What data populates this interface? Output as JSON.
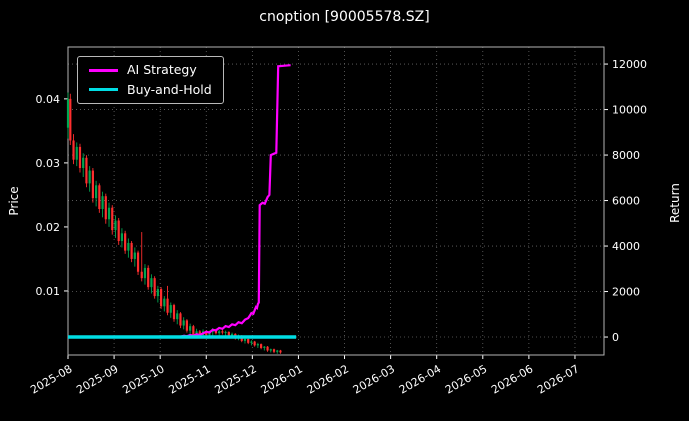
{
  "chart_data": {
    "type": "candlestick+line",
    "title": "cnoption [90005578.SZ]",
    "ylabel_left": "Price",
    "ylabel_right": "Return",
    "legend_position": "upper left",
    "grid": "dotted",
    "x_tick_labels": [
      "2025-08",
      "2025-09",
      "2025-10",
      "2025-11",
      "2025-12",
      "2026-01",
      "2026-02",
      "2026-03",
      "2026-04",
      "2026-05",
      "2026-06",
      "2026-07"
    ],
    "x_domain": [
      0,
      11.63
    ],
    "price_axis": {
      "label": "Price",
      "ticks": [
        0.01,
        0.02,
        0.03,
        0.04
      ],
      "lim": [
        0,
        0.0481
      ]
    },
    "return_axis": {
      "label": "Return",
      "ticks": [
        0,
        2000,
        4000,
        6000,
        8000,
        10000,
        12000
      ],
      "lim": [
        -790,
        12750
      ]
    },
    "colors": {
      "background": "#000000",
      "up": "#00a650",
      "down": "#ff2e2e",
      "grid": "#666666",
      "spine": "#b5b5b5",
      "text": "#ffffff"
    },
    "candles_format": [
      "month_offset_from_2025_08",
      "open",
      "high",
      "low",
      "close"
    ],
    "candles": [
      [
        0.0,
        0.0355,
        0.041,
        0.0338,
        0.04
      ],
      [
        0.05,
        0.04,
        0.0408,
        0.0328,
        0.0335
      ],
      [
        0.12,
        0.0335,
        0.0345,
        0.0298,
        0.0305
      ],
      [
        0.19,
        0.0305,
        0.0332,
        0.0295,
        0.0325
      ],
      [
        0.26,
        0.0325,
        0.033,
        0.0285,
        0.0292
      ],
      [
        0.33,
        0.0292,
        0.0315,
        0.0278,
        0.0308
      ],
      [
        0.4,
        0.0308,
        0.0312,
        0.0262,
        0.0268
      ],
      [
        0.47,
        0.0268,
        0.0295,
        0.0255,
        0.0288
      ],
      [
        0.54,
        0.0288,
        0.0292,
        0.0238,
        0.0245
      ],
      [
        0.61,
        0.0245,
        0.0272,
        0.0232,
        0.0265
      ],
      [
        0.68,
        0.0265,
        0.0268,
        0.0222,
        0.0228
      ],
      [
        0.75,
        0.0228,
        0.0255,
        0.0215,
        0.0248
      ],
      [
        0.82,
        0.0248,
        0.0252,
        0.0205,
        0.0212
      ],
      [
        0.89,
        0.0212,
        0.0238,
        0.02,
        0.023
      ],
      [
        0.96,
        0.023,
        0.0234,
        0.0188,
        0.0195
      ],
      [
        1.03,
        0.0195,
        0.0218,
        0.0183,
        0.021
      ],
      [
        1.1,
        0.021,
        0.0214,
        0.0172,
        0.0178
      ],
      [
        1.17,
        0.0178,
        0.0198,
        0.0168,
        0.019
      ],
      [
        1.24,
        0.019,
        0.0194,
        0.0158,
        0.0163
      ],
      [
        1.31,
        0.0163,
        0.0182,
        0.0152,
        0.0175
      ],
      [
        1.38,
        0.0175,
        0.0178,
        0.0145,
        0.015
      ],
      [
        1.45,
        0.015,
        0.0168,
        0.0138,
        0.016
      ],
      [
        1.52,
        0.016,
        0.0163,
        0.0125,
        0.013
      ],
      [
        1.6,
        0.013,
        0.0192,
        0.0115,
        0.012
      ],
      [
        1.67,
        0.012,
        0.0142,
        0.011,
        0.0136
      ],
      [
        1.74,
        0.0136,
        0.014,
        0.0102,
        0.0106
      ],
      [
        1.81,
        0.0106,
        0.0126,
        0.0096,
        0.012
      ],
      [
        1.88,
        0.012,
        0.0123,
        0.0088,
        0.0092
      ],
      [
        1.95,
        0.0092,
        0.0108,
        0.0082,
        0.0103
      ],
      [
        2.02,
        0.0103,
        0.0106,
        0.0072,
        0.0076
      ],
      [
        2.09,
        0.0076,
        0.0092,
        0.0068,
        0.0088
      ],
      [
        2.16,
        0.0088,
        0.0108,
        0.0062,
        0.0066
      ],
      [
        2.23,
        0.0066,
        0.0082,
        0.0058,
        0.0078
      ],
      [
        2.3,
        0.0078,
        0.008,
        0.0052,
        0.0056
      ],
      [
        2.37,
        0.0056,
        0.007,
        0.0048,
        0.0065
      ],
      [
        2.44,
        0.0065,
        0.0067,
        0.0042,
        0.0046
      ],
      [
        2.51,
        0.0046,
        0.0059,
        0.004,
        0.0054
      ],
      [
        2.58,
        0.0054,
        0.0056,
        0.0035,
        0.0038
      ],
      [
        2.65,
        0.0038,
        0.0049,
        0.0032,
        0.0045
      ],
      [
        2.72,
        0.0045,
        0.0047,
        0.0028,
        0.0031
      ],
      [
        2.79,
        0.0031,
        0.0041,
        0.0026,
        0.0037
      ],
      [
        2.86,
        0.0037,
        0.0039,
        0.0026,
        0.0029
      ],
      [
        2.93,
        0.0031,
        0.004,
        0.0027,
        0.0037
      ],
      [
        3.0,
        0.0037,
        0.0039,
        0.0029,
        0.0031
      ],
      [
        3.07,
        0.0031,
        0.0038,
        0.0027,
        0.0036
      ],
      [
        3.14,
        0.0036,
        0.0042,
        0.003,
        0.004
      ],
      [
        3.21,
        0.004,
        0.0041,
        0.0032,
        0.0034
      ],
      [
        3.28,
        0.0034,
        0.0039,
        0.003,
        0.0037
      ],
      [
        3.35,
        0.0037,
        0.004,
        0.0032,
        0.0035
      ],
      [
        3.42,
        0.0035,
        0.0038,
        0.0029,
        0.0036
      ],
      [
        3.49,
        0.0036,
        0.0037,
        0.0027,
        0.0029
      ],
      [
        3.56,
        0.0029,
        0.0035,
        0.0026,
        0.0033
      ],
      [
        3.63,
        0.0033,
        0.0034,
        0.0024,
        0.0026
      ],
      [
        3.7,
        0.0026,
        0.0032,
        0.0023,
        0.003
      ],
      [
        3.77,
        0.003,
        0.0031,
        0.002,
        0.0022
      ],
      [
        3.84,
        0.0022,
        0.0027,
        0.0018,
        0.0025
      ],
      [
        3.91,
        0.0025,
        0.0026,
        0.0017,
        0.0019
      ],
      [
        3.98,
        0.0019,
        0.0023,
        0.0015,
        0.0021
      ],
      [
        4.05,
        0.0021,
        0.0022,
        0.0013,
        0.0015
      ],
      [
        4.12,
        0.0015,
        0.0019,
        0.0011,
        0.0017
      ],
      [
        4.19,
        0.0017,
        0.0018,
        0.0009,
        0.0011
      ],
      [
        4.26,
        0.0011,
        0.0014,
        0.0007,
        0.0013
      ],
      [
        4.33,
        0.0013,
        0.0014,
        0.0005,
        0.0007
      ],
      [
        4.4,
        0.0007,
        0.001,
        0.0004,
        0.0009
      ],
      [
        4.47,
        0.0009,
        0.001,
        0.0003,
        0.0005
      ],
      [
        4.54,
        0.0005,
        0.0008,
        0.0002,
        0.0007
      ],
      [
        4.61,
        0.0007,
        0.0008,
        0.0002,
        0.0004
      ]
    ],
    "series": [
      {
        "name": "AI Strategy",
        "color": "#ff00ff",
        "axis": "return",
        "width": 2.2,
        "points": [
          [
            0,
            0
          ],
          [
            0.6,
            0
          ],
          [
            1.2,
            0
          ],
          [
            1.8,
            0
          ],
          [
            2.2,
            0
          ],
          [
            2.45,
            20
          ],
          [
            2.52,
            60
          ],
          [
            2.58,
            30
          ],
          [
            2.65,
            90
          ],
          [
            2.72,
            60
          ],
          [
            2.79,
            120
          ],
          [
            2.86,
            90
          ],
          [
            2.93,
            160
          ],
          [
            3.0,
            230
          ],
          [
            3.07,
            200
          ],
          [
            3.14,
            320
          ],
          [
            3.21,
            290
          ],
          [
            3.28,
            400
          ],
          [
            3.35,
            360
          ],
          [
            3.42,
            480
          ],
          [
            3.49,
            440
          ],
          [
            3.56,
            560
          ],
          [
            3.63,
            520
          ],
          [
            3.7,
            650
          ],
          [
            3.77,
            610
          ],
          [
            3.84,
            760
          ],
          [
            3.91,
            830
          ],
          [
            3.95,
            950
          ],
          [
            3.98,
            1050
          ],
          [
            4.02,
            1020
          ],
          [
            4.05,
            1180
          ],
          [
            4.08,
            1320
          ],
          [
            4.1,
            1280
          ],
          [
            4.12,
            1450
          ],
          [
            4.14,
            1520
          ],
          [
            4.16,
            5800
          ],
          [
            4.22,
            5900
          ],
          [
            4.27,
            5860
          ],
          [
            4.33,
            6150
          ],
          [
            4.37,
            6250
          ],
          [
            4.4,
            8000
          ],
          [
            4.47,
            8060
          ],
          [
            4.52,
            8100
          ],
          [
            4.56,
            11900
          ],
          [
            4.7,
            11930
          ],
          [
            4.83,
            11950
          ]
        ]
      },
      {
        "name": "Buy-and-Hold",
        "color": "#00dde4",
        "axis": "return",
        "width": 3.4,
        "points": [
          [
            0,
            0
          ],
          [
            4.95,
            0
          ]
        ]
      }
    ]
  }
}
